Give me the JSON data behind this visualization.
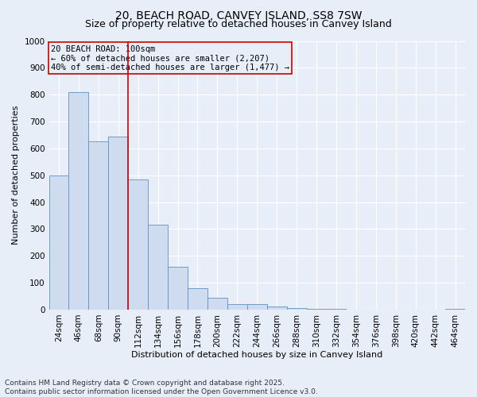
{
  "title1": "20, BEACH ROAD, CANVEY ISLAND, SS8 7SW",
  "title2": "Size of property relative to detached houses in Canvey Island",
  "xlabel": "Distribution of detached houses by size in Canvey Island",
  "ylabel": "Number of detached properties",
  "categories": [
    "24sqm",
    "46sqm",
    "68sqm",
    "90sqm",
    "112sqm",
    "134sqm",
    "156sqm",
    "178sqm",
    "200sqm",
    "222sqm",
    "244sqm",
    "266sqm",
    "288sqm",
    "310sqm",
    "332sqm",
    "354sqm",
    "376sqm",
    "398sqm",
    "420sqm",
    "442sqm",
    "464sqm"
  ],
  "values": [
    500,
    810,
    625,
    645,
    485,
    315,
    160,
    80,
    45,
    22,
    20,
    12,
    5,
    3,
    2,
    1,
    1,
    0,
    0,
    0,
    2
  ],
  "bar_color": "#cfdcf0",
  "bar_edge_color": "#6090c0",
  "vline_x": 3.5,
  "vline_color": "#cc0000",
  "annotation_text": "20 BEACH ROAD: 100sqm\n← 60% of detached houses are smaller (2,207)\n40% of semi-detached houses are larger (1,477) →",
  "annotation_box_color": "#cc0000",
  "annotation_bg": "#e8eef8",
  "ylim": [
    0,
    1000
  ],
  "yticks": [
    0,
    100,
    200,
    300,
    400,
    500,
    600,
    700,
    800,
    900,
    1000
  ],
  "background_color": "#e8eef8",
  "grid_color": "#ffffff",
  "footer": "Contains HM Land Registry data © Crown copyright and database right 2025.\nContains public sector information licensed under the Open Government Licence v3.0.",
  "title_fontsize": 10,
  "subtitle_fontsize": 9,
  "axis_label_fontsize": 8,
  "tick_fontsize": 7.5,
  "annotation_fontsize": 7.5,
  "footer_fontsize": 6.5
}
